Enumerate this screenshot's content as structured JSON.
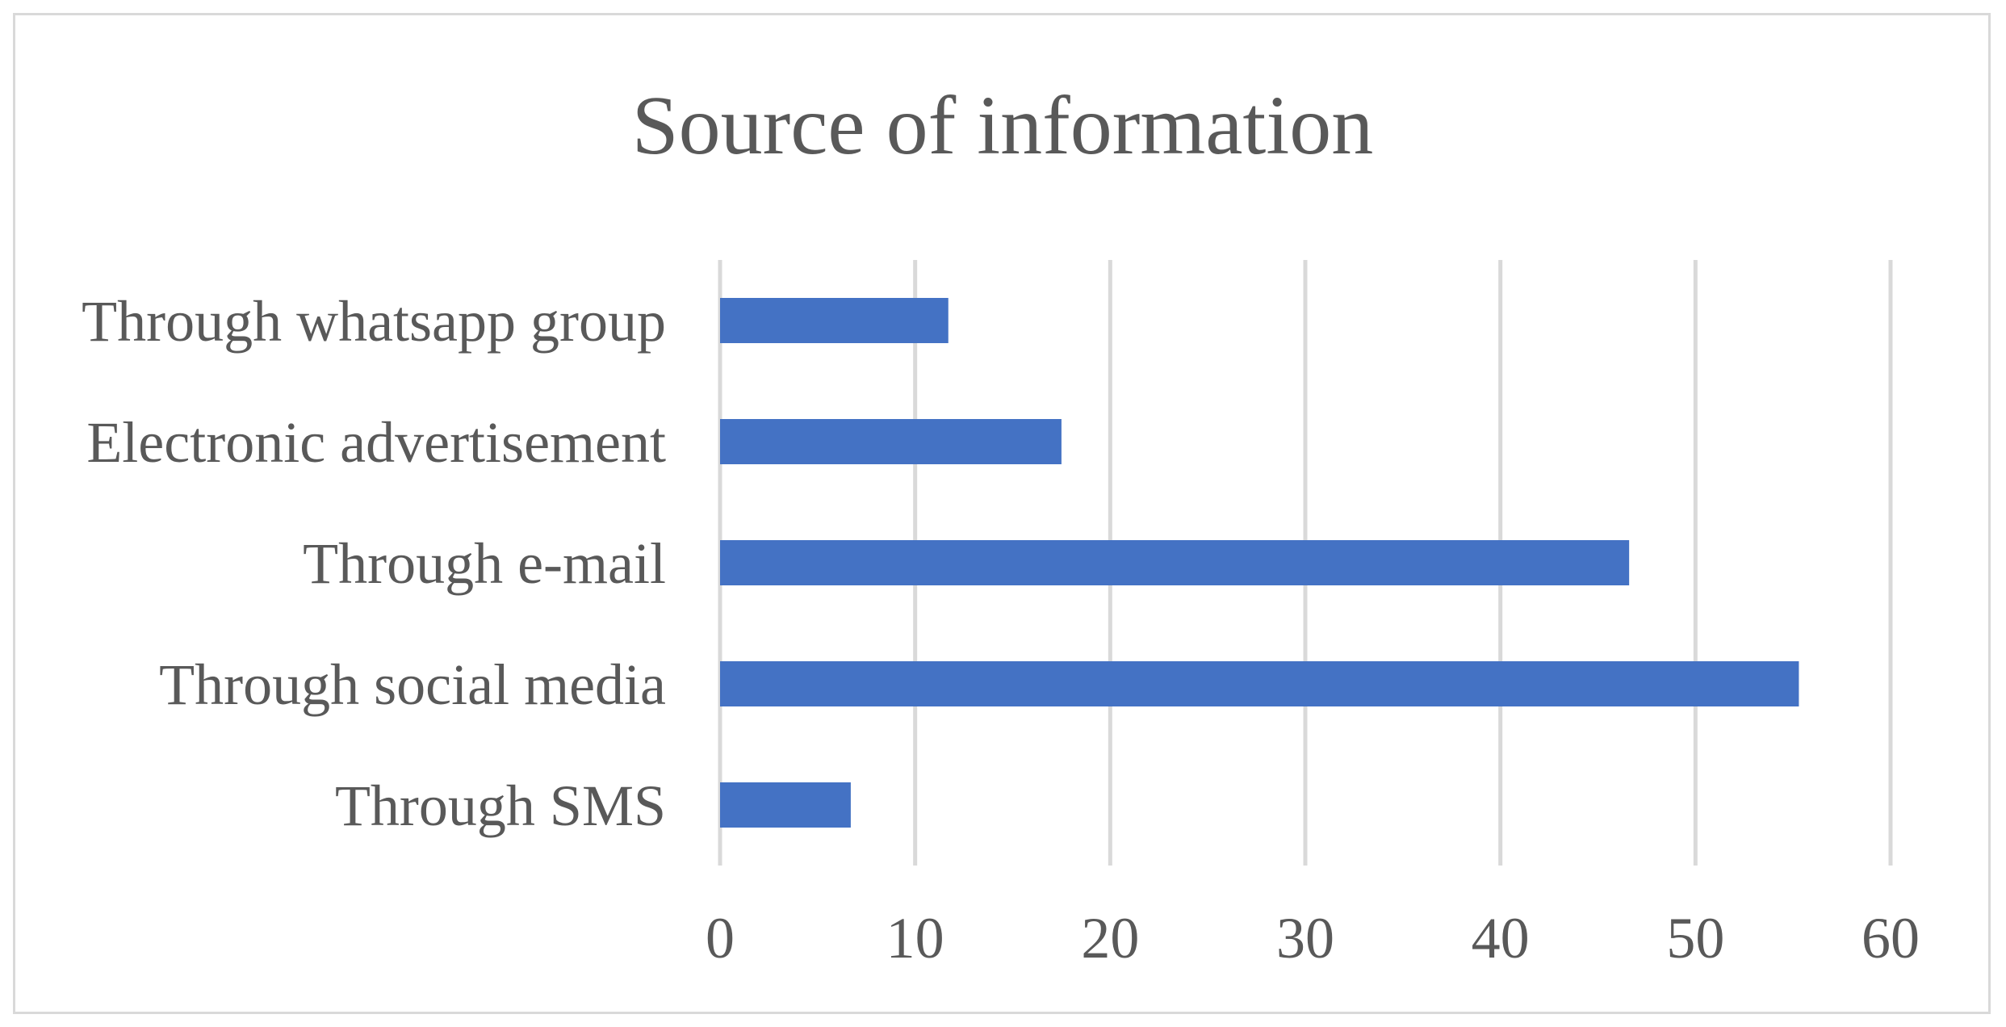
{
  "chart_data": {
    "type": "bar",
    "orientation": "horizontal",
    "title": "Source of information",
    "xlabel": "",
    "ylabel": "",
    "categories": [
      "Through whatsapp group",
      "Electronic advertisement",
      "Through e-mail",
      "Through social media",
      "Through SMS"
    ],
    "values": [
      11.7,
      17.5,
      46.6,
      55.3,
      6.7
    ],
    "xlim": [
      0,
      60
    ],
    "ticks": [
      0,
      10,
      20,
      30,
      40,
      50,
      60
    ],
    "tick_labels": [
      "0",
      "10",
      "20",
      "30",
      "40",
      "50",
      "60"
    ],
    "grid": true,
    "legend": "none",
    "bar_color": "#4472c4",
    "grid_color": "#d9d9d9",
    "text_color": "#595959"
  }
}
